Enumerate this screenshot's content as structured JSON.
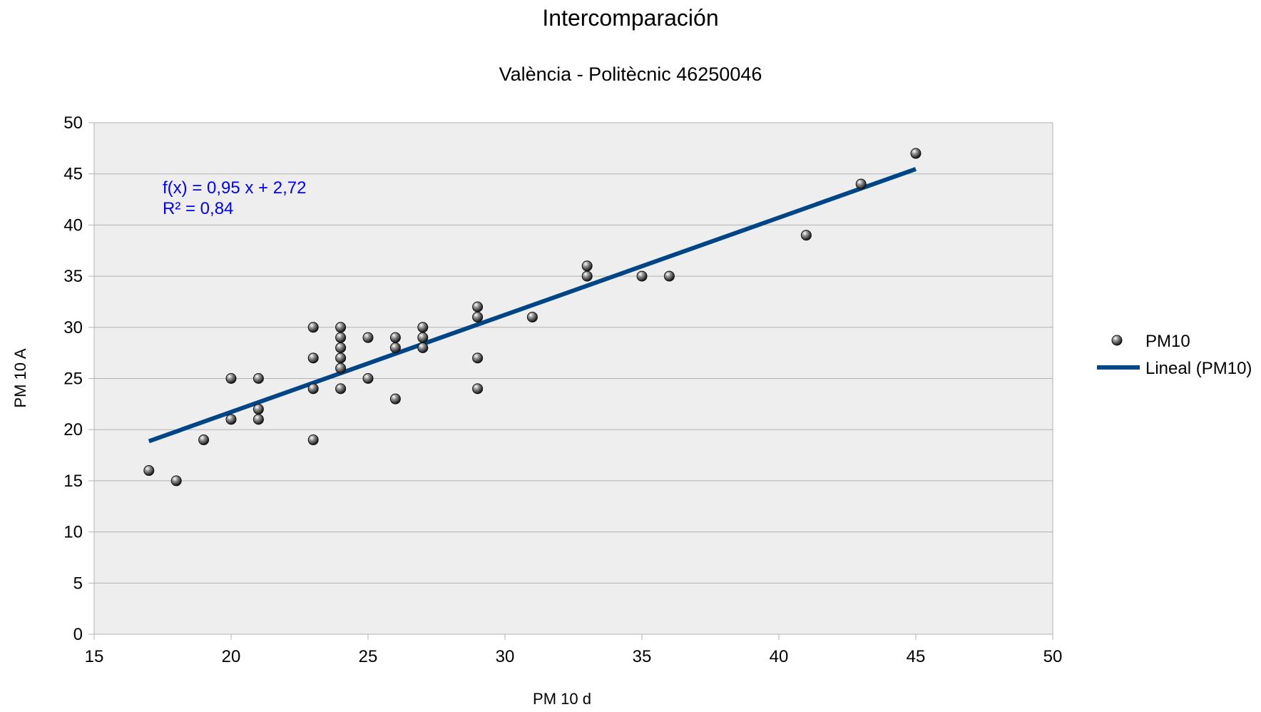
{
  "chart_data": {
    "type": "scatter",
    "title": "Intercomparación",
    "subtitle": "València - Politècnic 46250046",
    "xlabel": "PM 10 d",
    "ylabel": "PM 10 A",
    "xlim": [
      15,
      50
    ],
    "ylim": [
      0,
      50
    ],
    "x_ticks": [
      15,
      20,
      25,
      30,
      35,
      40,
      45,
      50
    ],
    "y_ticks": [
      0,
      5,
      10,
      15,
      20,
      25,
      30,
      35,
      40,
      45,
      50
    ],
    "grid": true,
    "legend_position": "right",
    "series": [
      {
        "name": "PM10",
        "kind": "points",
        "color": "#1a1a1a",
        "points": [
          [
            17,
            16
          ],
          [
            18,
            15
          ],
          [
            19,
            19
          ],
          [
            20,
            25
          ],
          [
            20,
            21
          ],
          [
            21,
            25
          ],
          [
            21,
            22
          ],
          [
            21,
            21
          ],
          [
            23,
            30
          ],
          [
            23,
            27
          ],
          [
            23,
            24
          ],
          [
            23,
            19
          ],
          [
            24,
            30
          ],
          [
            24,
            29
          ],
          [
            24,
            28
          ],
          [
            24,
            27
          ],
          [
            24,
            26
          ],
          [
            24,
            24
          ],
          [
            25,
            29
          ],
          [
            25,
            25
          ],
          [
            26,
            29
          ],
          [
            26,
            28
          ],
          [
            26,
            23
          ],
          [
            27,
            30
          ],
          [
            27,
            29
          ],
          [
            27,
            28
          ],
          [
            29,
            32
          ],
          [
            29,
            31
          ],
          [
            29,
            27
          ],
          [
            29,
            24
          ],
          [
            31,
            31
          ],
          [
            33,
            36
          ],
          [
            33,
            35
          ],
          [
            35,
            35
          ],
          [
            36,
            35
          ],
          [
            41,
            39
          ],
          [
            43,
            44
          ],
          [
            45,
            47
          ]
        ]
      },
      {
        "name": "Lineal (PM10)",
        "kind": "trendline",
        "color": "#004586",
        "slope": 0.95,
        "intercept": 2.72,
        "x_range": [
          17,
          45
        ]
      }
    ],
    "annotations": {
      "equation": "f(x) = 0,95 x + 2,72",
      "r_squared": "R² = 0,84",
      "color": "#0000ff"
    },
    "colors": {
      "plot_background": "#eeeeee",
      "grid": "#b3b3b3",
      "axis": "#b3b3b3"
    }
  }
}
